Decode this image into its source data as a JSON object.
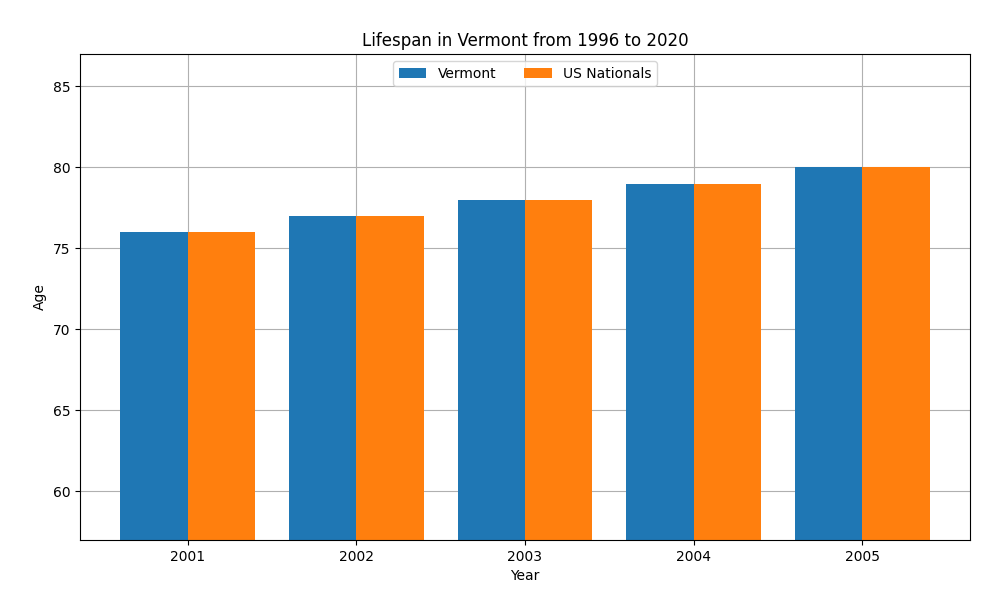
{
  "chart_data": {
    "type": "bar",
    "title": "Lifespan in Vermont from 1996 to 2020",
    "x_label": "Year",
    "y_label": "Age",
    "categories": [
      "2001",
      "2002",
      "2003",
      "2004",
      "2005"
    ],
    "series": [
      {
        "name": "Vermont",
        "values": [
          76,
          77,
          78,
          79,
          80
        ]
      },
      {
        "name": "US Nationals",
        "values": [
          76,
          77,
          78,
          79,
          80
        ]
      }
    ],
    "ylim": [
      57,
      87
    ],
    "yticks": [
      60,
      65,
      70,
      75,
      80,
      85
    ],
    "grid": true,
    "legend": "upper center"
  }
}
